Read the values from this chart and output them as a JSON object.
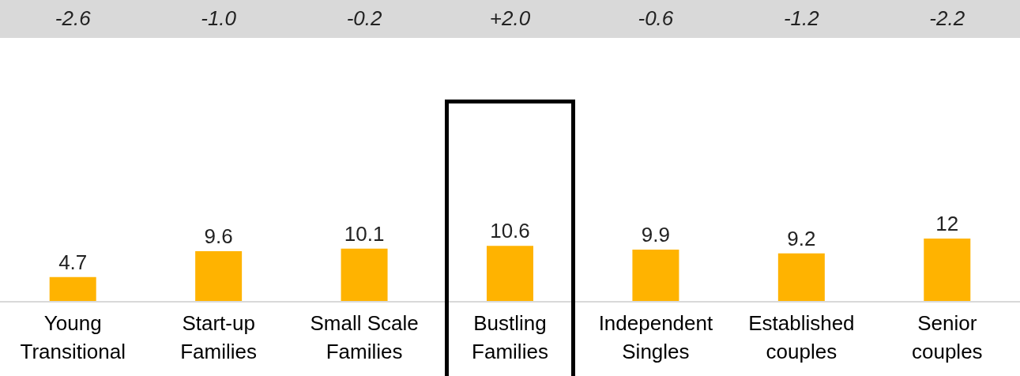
{
  "chart_data": {
    "type": "bar",
    "categories": [
      "Young Transitional",
      "Start-up Families",
      "Small Scale Families",
      "Bustling Families",
      "Independent Singles",
      "Established couples",
      "Senior couples"
    ],
    "values": [
      4.7,
      9.6,
      10.1,
      10.6,
      9.9,
      9.2,
      12
    ],
    "color": "#ffb300",
    "data_labels": true,
    "annotations": [
      "-2.6",
      "-1.0",
      "-0.2",
      "+2.0",
      "-0.6",
      "-1.2",
      "-2.2"
    ]
  }
}
